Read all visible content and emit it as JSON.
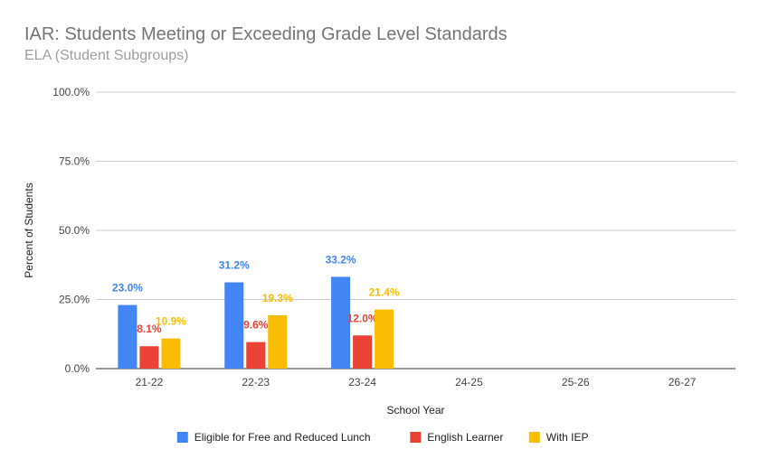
{
  "chart_data": {
    "type": "bar",
    "title": "IAR: Students Meeting or Exceeding Grade Level Standards",
    "subtitle": "ELA (Student Subgroups)",
    "xlabel": "School Year",
    "ylabel": "Percent of Students",
    "categories": [
      "21-22",
      "22-23",
      "23-24",
      "24-25",
      "25-26",
      "26-27"
    ],
    "ylim": [
      0,
      100
    ],
    "yticks": [
      0,
      25,
      50,
      75,
      100
    ],
    "ytick_labels": [
      "0.0%",
      "25.0%",
      "50.0%",
      "75.0%",
      "100.0%"
    ],
    "grid": true,
    "legend_position": "bottom",
    "series": [
      {
        "name": "Eligible for Free and Reduced Lunch",
        "color": "#4285f4",
        "values": [
          23.0,
          31.2,
          33.2,
          null,
          null,
          null
        ],
        "labels": [
          "23.0%",
          "31.2%",
          "33.2%",
          null,
          null,
          null
        ]
      },
      {
        "name": "English Learner",
        "color": "#ea4335",
        "values": [
          8.1,
          9.6,
          12.0,
          null,
          null,
          null
        ],
        "labels": [
          "8.1%",
          "9.6%",
          "12.0%",
          null,
          null,
          null
        ]
      },
      {
        "name": "With IEP",
        "color": "#fbbc04",
        "values": [
          10.9,
          19.3,
          21.4,
          null,
          null,
          null
        ],
        "labels": [
          "10.9%",
          "19.3%",
          "21.4%",
          null,
          null,
          null
        ]
      }
    ]
  }
}
